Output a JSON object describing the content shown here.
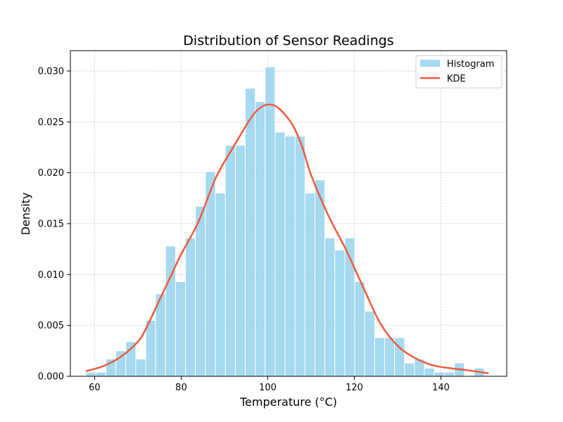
{
  "chart_data": {
    "type": "bar",
    "title": "Distribution of Sensor Readings",
    "xlabel": "Temperature (°C)",
    "ylabel": "Density",
    "xlim": [
      54.4,
      155.2
    ],
    "ylim": [
      0,
      0.032
    ],
    "xticks": [
      60,
      80,
      100,
      120,
      140
    ],
    "yticks": [
      0.0,
      0.005,
      0.01,
      0.015,
      0.02,
      0.025,
      0.03
    ],
    "ytick_labels": [
      "0.000",
      "0.005",
      "0.010",
      "0.015",
      "0.020",
      "0.025",
      "0.030"
    ],
    "grid": true,
    "legend_position": "top-right",
    "histogram": {
      "name": "Histogram",
      "color": "#87ceeb",
      "bin_start": 58.0,
      "bin_width": 2.3,
      "densities": [
        0.0004,
        0.0004,
        0.0017,
        0.0025,
        0.0034,
        0.0017,
        0.0055,
        0.0081,
        0.0128,
        0.0093,
        0.0136,
        0.0167,
        0.0201,
        0.018,
        0.0227,
        0.0227,
        0.0283,
        0.027,
        0.0304,
        0.024,
        0.0236,
        0.0236,
        0.018,
        0.0193,
        0.0136,
        0.0124,
        0.0136,
        0.0093,
        0.0064,
        0.0038,
        0.0038,
        0.0038,
        0.0013,
        0.0017,
        0.0008,
        0.0004,
        0.0004,
        0.0013,
        0.0,
        0.0008
      ]
    },
    "kde": {
      "name": "KDE",
      "color": "#f05a3c",
      "x": [
        58,
        62,
        66,
        70,
        72,
        75,
        78,
        80,
        84,
        88,
        92,
        96,
        98,
        100,
        102,
        104,
        106,
        108,
        110,
        114,
        118,
        122,
        126,
        130,
        134,
        138,
        142,
        146,
        151
      ],
      "y": [
        0.0005,
        0.001,
        0.0019,
        0.0034,
        0.0048,
        0.0075,
        0.0102,
        0.012,
        0.0152,
        0.0195,
        0.0225,
        0.0253,
        0.0263,
        0.0267,
        0.0265,
        0.0257,
        0.0245,
        0.0225,
        0.0198,
        0.0158,
        0.0125,
        0.0088,
        0.0052,
        0.003,
        0.0018,
        0.0011,
        0.0008,
        0.0006,
        0.0003
      ]
    }
  }
}
